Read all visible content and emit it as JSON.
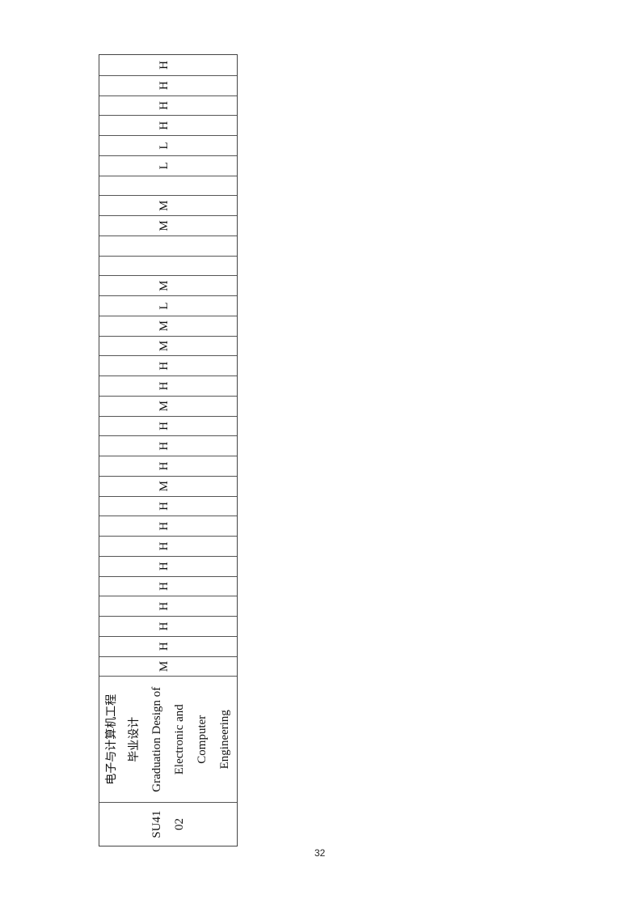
{
  "course": {
    "code_lines": [
      "SU41",
      "02"
    ],
    "name_cn_lines": [
      "电子与计算机工程",
      "毕业设计"
    ],
    "name_en_lines": [
      "Graduation Design of",
      "Electronic and",
      "Computer",
      "Engineering"
    ],
    "ratings": [
      "M",
      "H",
      "H",
      "H",
      "H",
      "H",
      "H",
      "H",
      "H",
      "M",
      "H",
      "H",
      "H",
      "M",
      "H",
      "H",
      "M",
      "M",
      "L",
      "M",
      "",
      "",
      "M",
      "M",
      "",
      "L",
      "L",
      "H",
      "H",
      "H",
      "H"
    ]
  },
  "page_number": "32"
}
